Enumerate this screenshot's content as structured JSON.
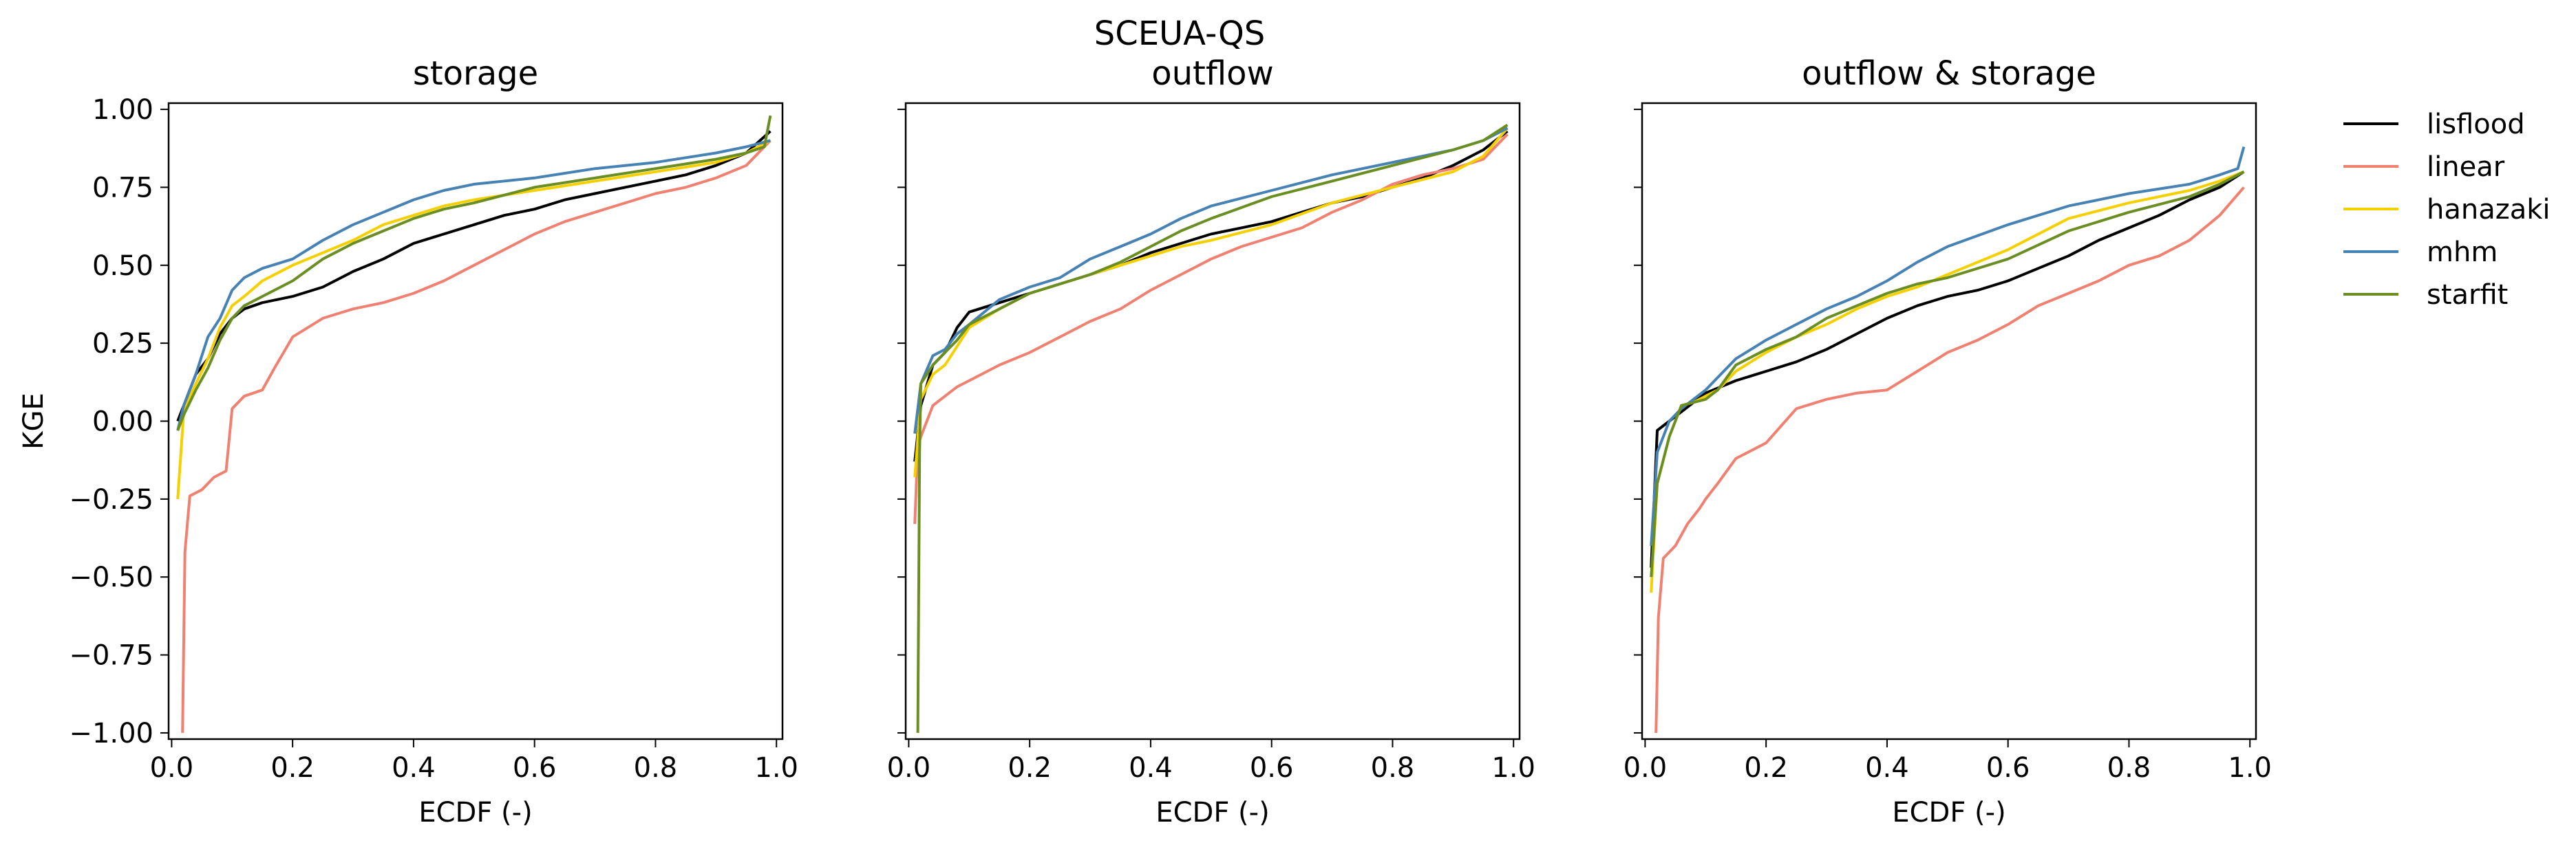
{
  "figure_title": "SCEUA-QS",
  "chart_data": [
    {
      "type": "line",
      "title": "storage",
      "xlabel": "ECDF (-)",
      "ylabel": "KGE",
      "xlim": [
        -0.005,
        1.01
      ],
      "ylim": [
        -1.02,
        1.02
      ],
      "xticks": [
        "0.0",
        "0.2",
        "0.4",
        "0.6",
        "0.8",
        "1.0"
      ],
      "yticks": [
        "1.00",
        "0.75",
        "0.50",
        "0.25",
        "0.00",
        "−0.25",
        "−0.50",
        "−0.75",
        "−1.00"
      ],
      "grid": false,
      "series": [
        {
          "name": "lisflood",
          "color": "#000000",
          "x": [
            0.01,
            0.02,
            0.04,
            0.06,
            0.08,
            0.1,
            0.12,
            0.15,
            0.2,
            0.25,
            0.3,
            0.35,
            0.4,
            0.45,
            0.5,
            0.55,
            0.6,
            0.65,
            0.7,
            0.75,
            0.8,
            0.85,
            0.9,
            0.95,
            0.99
          ],
          "y": [
            0.0,
            0.05,
            0.15,
            0.2,
            0.28,
            0.33,
            0.36,
            0.38,
            0.4,
            0.43,
            0.48,
            0.52,
            0.57,
            0.6,
            0.63,
            0.66,
            0.68,
            0.71,
            0.73,
            0.75,
            0.77,
            0.79,
            0.82,
            0.86,
            0.93
          ]
        },
        {
          "name": "linear",
          "color": "#f08070",
          "x": [
            0.018,
            0.022,
            0.03,
            0.05,
            0.07,
            0.09,
            0.1,
            0.12,
            0.15,
            0.17,
            0.2,
            0.25,
            0.3,
            0.35,
            0.4,
            0.45,
            0.5,
            0.55,
            0.6,
            0.65,
            0.7,
            0.75,
            0.8,
            0.85,
            0.9,
            0.95,
            0.99
          ],
          "y": [
            -1.0,
            -0.42,
            -0.24,
            -0.22,
            -0.18,
            -0.16,
            0.04,
            0.08,
            0.1,
            0.17,
            0.27,
            0.33,
            0.36,
            0.38,
            0.41,
            0.45,
            0.5,
            0.55,
            0.6,
            0.64,
            0.67,
            0.7,
            0.73,
            0.75,
            0.78,
            0.82,
            0.9
          ]
        },
        {
          "name": "hanazaki",
          "color": "#f5d000",
          "x": [
            0.01,
            0.02,
            0.04,
            0.06,
            0.08,
            0.1,
            0.12,
            0.15,
            0.2,
            0.25,
            0.3,
            0.35,
            0.4,
            0.45,
            0.5,
            0.6,
            0.7,
            0.8,
            0.9,
            0.95,
            0.99
          ],
          "y": [
            -0.25,
            0.03,
            0.12,
            0.2,
            0.3,
            0.37,
            0.4,
            0.45,
            0.5,
            0.54,
            0.58,
            0.63,
            0.66,
            0.69,
            0.71,
            0.74,
            0.77,
            0.8,
            0.83,
            0.86,
            0.9
          ]
        },
        {
          "name": "mhm",
          "color": "#4682b4",
          "x": [
            0.01,
            0.02,
            0.04,
            0.06,
            0.08,
            0.1,
            0.12,
            0.15,
            0.2,
            0.25,
            0.3,
            0.35,
            0.4,
            0.45,
            0.5,
            0.6,
            0.7,
            0.8,
            0.9,
            0.95,
            0.99
          ],
          "y": [
            -0.03,
            0.05,
            0.15,
            0.27,
            0.33,
            0.42,
            0.46,
            0.49,
            0.52,
            0.58,
            0.63,
            0.67,
            0.71,
            0.74,
            0.76,
            0.78,
            0.81,
            0.83,
            0.86,
            0.88,
            0.9
          ]
        },
        {
          "name": "starfit",
          "color": "#6b8e23",
          "x": [
            0.01,
            0.02,
            0.04,
            0.06,
            0.08,
            0.1,
            0.12,
            0.15,
            0.2,
            0.25,
            0.3,
            0.35,
            0.4,
            0.45,
            0.5,
            0.6,
            0.7,
            0.8,
            0.9,
            0.95,
            0.98,
            0.99
          ],
          "y": [
            -0.03,
            0.02,
            0.1,
            0.17,
            0.26,
            0.33,
            0.37,
            0.4,
            0.45,
            0.52,
            0.57,
            0.61,
            0.65,
            0.68,
            0.7,
            0.75,
            0.78,
            0.81,
            0.84,
            0.86,
            0.88,
            0.98
          ]
        }
      ]
    },
    {
      "type": "line",
      "title": "outflow",
      "xlabel": "ECDF (-)",
      "ylabel": "",
      "xlim": [
        -0.005,
        1.01
      ],
      "ylim": [
        -1.02,
        1.02
      ],
      "xticks": [
        "0.0",
        "0.2",
        "0.4",
        "0.6",
        "0.8",
        "1.0"
      ],
      "grid": false,
      "series": [
        {
          "name": "lisflood",
          "color": "#000000",
          "x": [
            0.01,
            0.02,
            0.04,
            0.06,
            0.08,
            0.1,
            0.15,
            0.2,
            0.25,
            0.3,
            0.35,
            0.4,
            0.45,
            0.5,
            0.55,
            0.6,
            0.65,
            0.7,
            0.75,
            0.8,
            0.85,
            0.9,
            0.95,
            0.99
          ],
          "y": [
            -0.13,
            0.05,
            0.18,
            0.22,
            0.3,
            0.35,
            0.38,
            0.41,
            0.44,
            0.47,
            0.5,
            0.54,
            0.57,
            0.6,
            0.62,
            0.64,
            0.67,
            0.7,
            0.72,
            0.75,
            0.78,
            0.82,
            0.87,
            0.93
          ]
        },
        {
          "name": "linear",
          "color": "#f08070",
          "x": [
            0.01,
            0.015,
            0.02,
            0.04,
            0.06,
            0.08,
            0.1,
            0.15,
            0.2,
            0.25,
            0.3,
            0.35,
            0.4,
            0.45,
            0.5,
            0.55,
            0.6,
            0.65,
            0.7,
            0.75,
            0.8,
            0.85,
            0.9,
            0.95,
            0.99
          ],
          "y": [
            -0.33,
            -0.08,
            -0.05,
            0.05,
            0.08,
            0.11,
            0.13,
            0.18,
            0.22,
            0.27,
            0.32,
            0.36,
            0.42,
            0.47,
            0.52,
            0.56,
            0.59,
            0.62,
            0.67,
            0.71,
            0.76,
            0.79,
            0.81,
            0.84,
            0.92
          ]
        },
        {
          "name": "hanazaki",
          "color": "#f5d000",
          "x": [
            0.01,
            0.02,
            0.04,
            0.06,
            0.08,
            0.1,
            0.15,
            0.2,
            0.25,
            0.3,
            0.35,
            0.4,
            0.45,
            0.5,
            0.6,
            0.7,
            0.8,
            0.9,
            0.95,
            0.99
          ],
          "y": [
            -0.18,
            0.07,
            0.15,
            0.18,
            0.24,
            0.3,
            0.36,
            0.41,
            0.44,
            0.47,
            0.5,
            0.53,
            0.56,
            0.58,
            0.63,
            0.7,
            0.75,
            0.8,
            0.85,
            0.94
          ]
        },
        {
          "name": "mhm",
          "color": "#4682b4",
          "x": [
            0.01,
            0.02,
            0.04,
            0.06,
            0.08,
            0.1,
            0.15,
            0.2,
            0.25,
            0.3,
            0.35,
            0.4,
            0.45,
            0.5,
            0.6,
            0.7,
            0.8,
            0.9,
            0.95,
            0.99
          ],
          "y": [
            -0.04,
            0.12,
            0.21,
            0.23,
            0.28,
            0.31,
            0.39,
            0.43,
            0.46,
            0.52,
            0.56,
            0.6,
            0.65,
            0.69,
            0.74,
            0.79,
            0.83,
            0.87,
            0.9,
            0.94
          ]
        },
        {
          "name": "starfit",
          "color": "#6b8e23",
          "x": [
            0.015,
            0.018,
            0.02,
            0.04,
            0.06,
            0.08,
            0.1,
            0.15,
            0.2,
            0.25,
            0.3,
            0.35,
            0.4,
            0.45,
            0.5,
            0.6,
            0.7,
            0.8,
            0.9,
            0.95,
            0.99
          ],
          "y": [
            -1.0,
            -0.1,
            0.12,
            0.18,
            0.22,
            0.26,
            0.31,
            0.36,
            0.41,
            0.44,
            0.47,
            0.51,
            0.56,
            0.61,
            0.65,
            0.72,
            0.77,
            0.82,
            0.87,
            0.9,
            0.95
          ]
        }
      ]
    },
    {
      "type": "line",
      "title": "outflow & storage",
      "xlabel": "ECDF (-)",
      "ylabel": "",
      "xlim": [
        -0.005,
        1.01
      ],
      "ylim": [
        -1.02,
        1.02
      ],
      "xticks": [
        "0.0",
        "0.2",
        "0.4",
        "0.6",
        "0.8",
        "1.0"
      ],
      "grid": false,
      "series": [
        {
          "name": "lisflood",
          "color": "#000000",
          "x": [
            0.01,
            0.02,
            0.04,
            0.06,
            0.08,
            0.1,
            0.15,
            0.2,
            0.25,
            0.3,
            0.35,
            0.4,
            0.45,
            0.5,
            0.55,
            0.6,
            0.65,
            0.7,
            0.75,
            0.8,
            0.85,
            0.9,
            0.95,
            0.99
          ],
          "y": [
            -0.47,
            -0.03,
            0.0,
            0.03,
            0.06,
            0.09,
            0.13,
            0.16,
            0.19,
            0.23,
            0.28,
            0.33,
            0.37,
            0.4,
            0.42,
            0.45,
            0.49,
            0.53,
            0.58,
            0.62,
            0.66,
            0.71,
            0.75,
            0.8
          ]
        },
        {
          "name": "linear",
          "color": "#f08070",
          "x": [
            0.018,
            0.022,
            0.03,
            0.05,
            0.07,
            0.09,
            0.1,
            0.12,
            0.15,
            0.2,
            0.25,
            0.3,
            0.35,
            0.4,
            0.45,
            0.5,
            0.55,
            0.6,
            0.65,
            0.7,
            0.75,
            0.8,
            0.85,
            0.9,
            0.95,
            0.99
          ],
          "y": [
            -1.0,
            -0.63,
            -0.44,
            -0.4,
            -0.33,
            -0.28,
            -0.25,
            -0.2,
            -0.12,
            -0.07,
            0.04,
            0.07,
            0.09,
            0.1,
            0.16,
            0.22,
            0.26,
            0.31,
            0.37,
            0.41,
            0.45,
            0.5,
            0.53,
            0.58,
            0.66,
            0.75
          ]
        },
        {
          "name": "hanazaki",
          "color": "#f5d000",
          "x": [
            0.01,
            0.02,
            0.04,
            0.06,
            0.08,
            0.1,
            0.12,
            0.15,
            0.2,
            0.25,
            0.3,
            0.35,
            0.4,
            0.45,
            0.5,
            0.6,
            0.7,
            0.8,
            0.9,
            0.95,
            0.99
          ],
          "y": [
            -0.55,
            -0.2,
            -0.05,
            0.05,
            0.06,
            0.08,
            0.1,
            0.16,
            0.22,
            0.27,
            0.31,
            0.36,
            0.4,
            0.43,
            0.47,
            0.55,
            0.65,
            0.7,
            0.74,
            0.77,
            0.8
          ]
        },
        {
          "name": "mhm",
          "color": "#4682b4",
          "x": [
            0.01,
            0.02,
            0.04,
            0.06,
            0.08,
            0.1,
            0.12,
            0.15,
            0.2,
            0.25,
            0.3,
            0.35,
            0.4,
            0.45,
            0.5,
            0.6,
            0.7,
            0.8,
            0.9,
            0.95,
            0.98,
            0.99
          ],
          "y": [
            -0.4,
            -0.1,
            0.0,
            0.04,
            0.07,
            0.1,
            0.14,
            0.2,
            0.26,
            0.31,
            0.36,
            0.4,
            0.45,
            0.51,
            0.56,
            0.63,
            0.69,
            0.73,
            0.76,
            0.79,
            0.81,
            0.88
          ]
        },
        {
          "name": "starfit",
          "color": "#6b8e23",
          "x": [
            0.01,
            0.02,
            0.04,
            0.06,
            0.08,
            0.1,
            0.12,
            0.15,
            0.2,
            0.25,
            0.3,
            0.35,
            0.4,
            0.45,
            0.5,
            0.6,
            0.7,
            0.8,
            0.9,
            0.95,
            0.99
          ],
          "y": [
            -0.5,
            -0.2,
            -0.05,
            0.05,
            0.06,
            0.07,
            0.1,
            0.18,
            0.23,
            0.27,
            0.33,
            0.37,
            0.41,
            0.44,
            0.46,
            0.52,
            0.61,
            0.67,
            0.72,
            0.76,
            0.8
          ]
        }
      ]
    }
  ],
  "legend": {
    "placement": "right",
    "entries": [
      {
        "label": "lisflood",
        "color": "#000000"
      },
      {
        "label": "linear",
        "color": "#f08070"
      },
      {
        "label": "hanazaki",
        "color": "#f5d000"
      },
      {
        "label": "mhm",
        "color": "#4682b4"
      },
      {
        "label": "starfit",
        "color": "#6b8e23"
      }
    ]
  }
}
